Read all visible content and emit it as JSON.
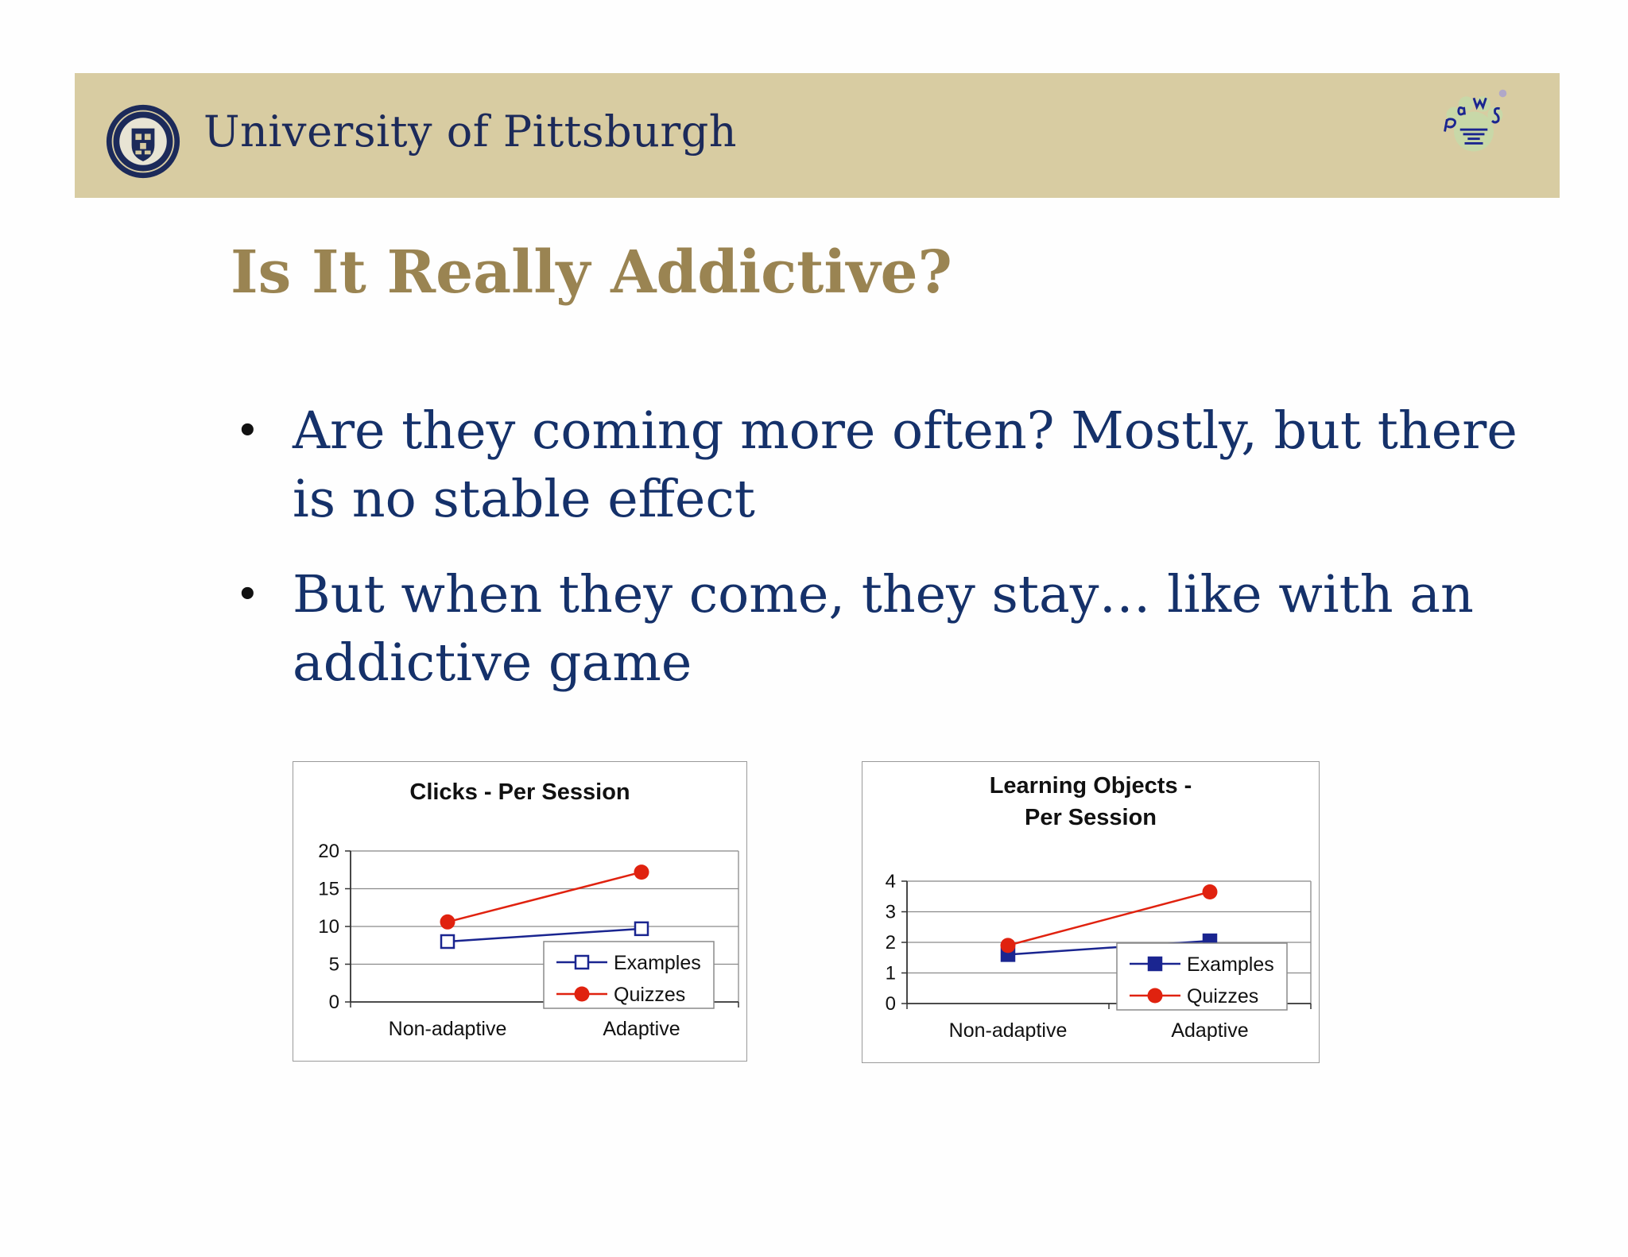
{
  "header": {
    "university_name": "University of Pittsburgh",
    "seal_icon": "university-seal-icon",
    "logo_icon": "paws-logo-icon"
  },
  "slide": {
    "title": "Is It Really Addictive?",
    "bullets": [
      "Are they coming more often? Mostly, but there is no stable effect",
      "But when they come, they stay… like with an addictive game"
    ]
  },
  "colors": {
    "banner": "#d8cca2",
    "title": "#9a8452",
    "bullet_text": "#15316a",
    "examples_series": "#1a2590",
    "quizzes_series": "#e0220f"
  },
  "chart_data": [
    {
      "type": "line",
      "title": "Clicks - Per Session",
      "categories": [
        "Non-adaptive",
        "Adaptive"
      ],
      "series": [
        {
          "name": "Examples",
          "values": [
            8,
            9.7
          ],
          "marker": "hollow-square",
          "color": "#1a2590"
        },
        {
          "name": "Quizzes",
          "values": [
            10.6,
            17.2
          ],
          "marker": "circle",
          "color": "#e0220f"
        }
      ],
      "ylim": [
        0,
        20
      ],
      "yticks": [
        0,
        5,
        10,
        15,
        20
      ],
      "grid": true,
      "legend": "bottom-right"
    },
    {
      "type": "line",
      "title": "Learning Objects - Per Session",
      "categories": [
        "Non-adaptive",
        "Adaptive"
      ],
      "series": [
        {
          "name": "Examples",
          "values": [
            1.6,
            2.05
          ],
          "marker": "filled-square",
          "color": "#1a2590"
        },
        {
          "name": "Quizzes",
          "values": [
            1.9,
            3.65
          ],
          "marker": "circle",
          "color": "#e0220f"
        }
      ],
      "ylim": [
        0,
        4
      ],
      "yticks": [
        0,
        1,
        2,
        3,
        4
      ],
      "grid": true,
      "legend": "bottom-right"
    }
  ]
}
